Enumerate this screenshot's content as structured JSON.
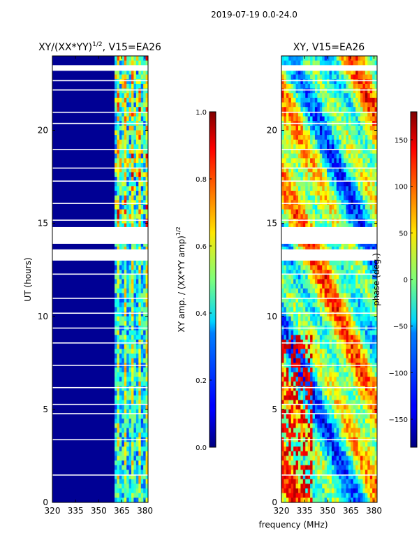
{
  "suptitle": "2019-07-19 0.0-24.0",
  "shared_xlabel": "frequency (MHz)",
  "chart_data": [
    {
      "type": "heatmap",
      "title": "XY/(XX*YY)^{1/2}, V15=EA26",
      "title_main": "XY/(XX*YY)",
      "title_sup": "1/2",
      "title_tail": ", V15=EA26",
      "xlabel": "frequency (MHz)",
      "ylabel": "UT (hours)",
      "xlim": [
        320,
        382
      ],
      "ylim": [
        0,
        24
      ],
      "xticks": [
        320,
        335,
        350,
        365,
        380
      ],
      "yticks": [
        0,
        5,
        10,
        15,
        20
      ],
      "colorbar": {
        "label_main": "XY amp. / (XX*YY amp)",
        "label_sup": "1/2",
        "range": [
          0.0,
          1.0
        ],
        "ticks": [
          "0.0",
          "0.2",
          "0.4",
          "0.6",
          "0.8",
          "1.0"
        ],
        "colormap": "jet"
      },
      "active_band_mhz": [
        360,
        380
      ],
      "data_gaps_hours": [
        [
          13.0,
          13.6
        ],
        [
          13.9,
          14.8
        ],
        [
          23.2,
          23.5
        ]
      ]
    },
    {
      "type": "heatmap",
      "title": "XY, V15=EA26",
      "xlabel": "frequency (MHz)",
      "ylabel": "",
      "xlim": [
        320,
        382
      ],
      "ylim": [
        0,
        24
      ],
      "xticks": [
        320,
        335,
        350,
        365,
        380
      ],
      "yticks": [
        0,
        5,
        10,
        15,
        20
      ],
      "colorbar": {
        "label": "phase (deg.)",
        "range": [
          -180,
          180
        ],
        "ticks": [
          "−150",
          "−100",
          "−50",
          "0",
          "50",
          "100",
          "150"
        ],
        "colormap": "jet"
      },
      "data_gaps_hours": [
        [
          13.0,
          13.6
        ],
        [
          13.9,
          14.8
        ],
        [
          23.2,
          23.5
        ]
      ]
    }
  ]
}
